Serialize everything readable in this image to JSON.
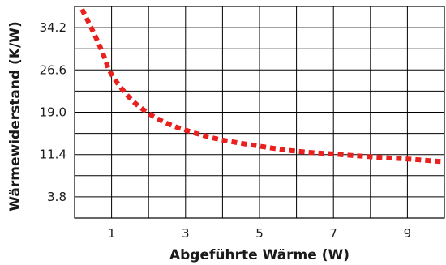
{
  "chart_data": {
    "type": "line",
    "title": "",
    "xlabel": "Abgeführte Wärme (W)",
    "ylabel": "Wärmewiderstand (K/W)",
    "xlim": [
      0,
      10
    ],
    "ylim": [
      0,
      38
    ],
    "x_ticks": [
      1,
      3,
      5,
      7,
      9
    ],
    "x_tick_labels": [
      "1",
      "3",
      "5",
      "7",
      "9"
    ],
    "y_ticks": [
      3.8,
      11.4,
      19.0,
      26.6,
      34.2
    ],
    "y_tick_labels": [
      "3.8",
      "11.4",
      "19.0",
      "26.6",
      "34.2"
    ],
    "grid": true,
    "series": [
      {
        "color": "#e8201e",
        "line_style": "dashed",
        "x": [
          0.2,
          0.5,
          0.75,
          1.0,
          1.5,
          2.0,
          2.5,
          3.0,
          3.5,
          4.0,
          5.0,
          6.0,
          7.0,
          8.0,
          9.0,
          10.0
        ],
        "y": [
          37.5,
          33.5,
          29.8,
          25.8,
          21.5,
          18.8,
          17.0,
          15.8,
          14.8,
          14.0,
          12.9,
          12.0,
          11.5,
          11.0,
          10.6,
          10.1
        ]
      }
    ]
  }
}
